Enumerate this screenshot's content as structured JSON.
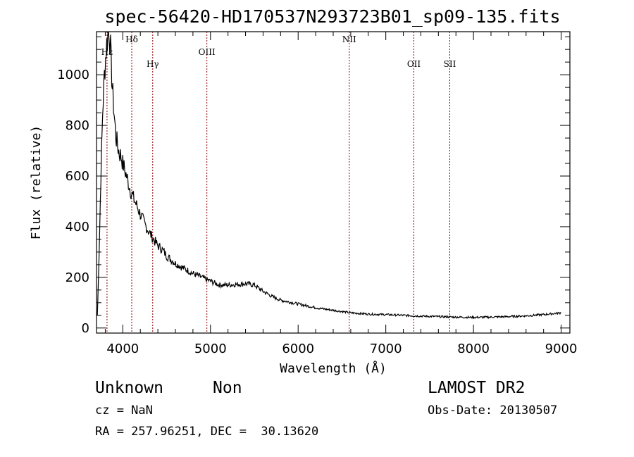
{
  "chart_data": {
    "type": "line",
    "title": "spec-56420-HD170537N293723B01_sp09-135.fits",
    "xlabel": "Wavelength (Å)",
    "ylabel": "Flux (relative)",
    "xlim": [
      3700,
      9100
    ],
    "ylim": [
      -20,
      1170
    ],
    "x_ticks": [
      4000,
      5000,
      6000,
      7000,
      8000,
      9000
    ],
    "y_ticks": [
      0,
      200,
      400,
      600,
      800,
      1000
    ],
    "grid": false,
    "series": [
      {
        "color": "#000000",
        "x": [
          3710,
          3730,
          3750,
          3770,
          3790,
          3810,
          3830,
          3845,
          3860,
          3880,
          3900,
          3920,
          3940,
          3960,
          3980,
          4000,
          4050,
          4100,
          4150,
          4200,
          4250,
          4300,
          4350,
          4400,
          4450,
          4500,
          4600,
          4700,
          4800,
          4900,
          5000,
          5100,
          5200,
          5300,
          5400,
          5500,
          5600,
          5700,
          5800,
          6000,
          6200,
          6400,
          6600,
          6800,
          7000,
          7200,
          7400,
          7600,
          7800,
          8000,
          8200,
          8400,
          8600,
          8800,
          9000
        ],
        "y": [
          50,
          300,
          600,
          850,
          1000,
          1100,
          1160,
          1180,
          1100,
          950,
          850,
          760,
          720,
          690,
          680,
          650,
          590,
          530,
          490,
          450,
          410,
          380,
          350,
          325,
          310,
          285,
          255,
          235,
          215,
          200,
          185,
          170,
          170,
          172,
          175,
          170,
          145,
          125,
          110,
          95,
          80,
          70,
          60,
          55,
          53,
          50,
          47,
          45,
          43,
          42,
          43,
          45,
          48,
          53,
          60
        ]
      }
    ],
    "annotations": [
      {
        "label": "Hε",
        "x": 3820,
        "level": 1
      },
      {
        "label": "Hδ",
        "x": 4102,
        "level": 0
      },
      {
        "label": "Hγ",
        "x": 4341,
        "level": 2
      },
      {
        "label": "OIII",
        "x": 4959,
        "level": 1
      },
      {
        "label": "NII",
        "x": 6583,
        "level": 0
      },
      {
        "label": "OII",
        "x": 7320,
        "level": 2
      },
      {
        "label": "SII",
        "x": 7730,
        "level": 2
      }
    ],
    "line_color": "#8b0000"
  },
  "info": {
    "object_class": "Unknown",
    "subclass": "Non",
    "cz": "cz = NaN",
    "coords": "RA = 257.96251, DEC =  30.13620",
    "survey": "LAMOST DR2",
    "obs_date": "Obs-Date: 20130507"
  }
}
